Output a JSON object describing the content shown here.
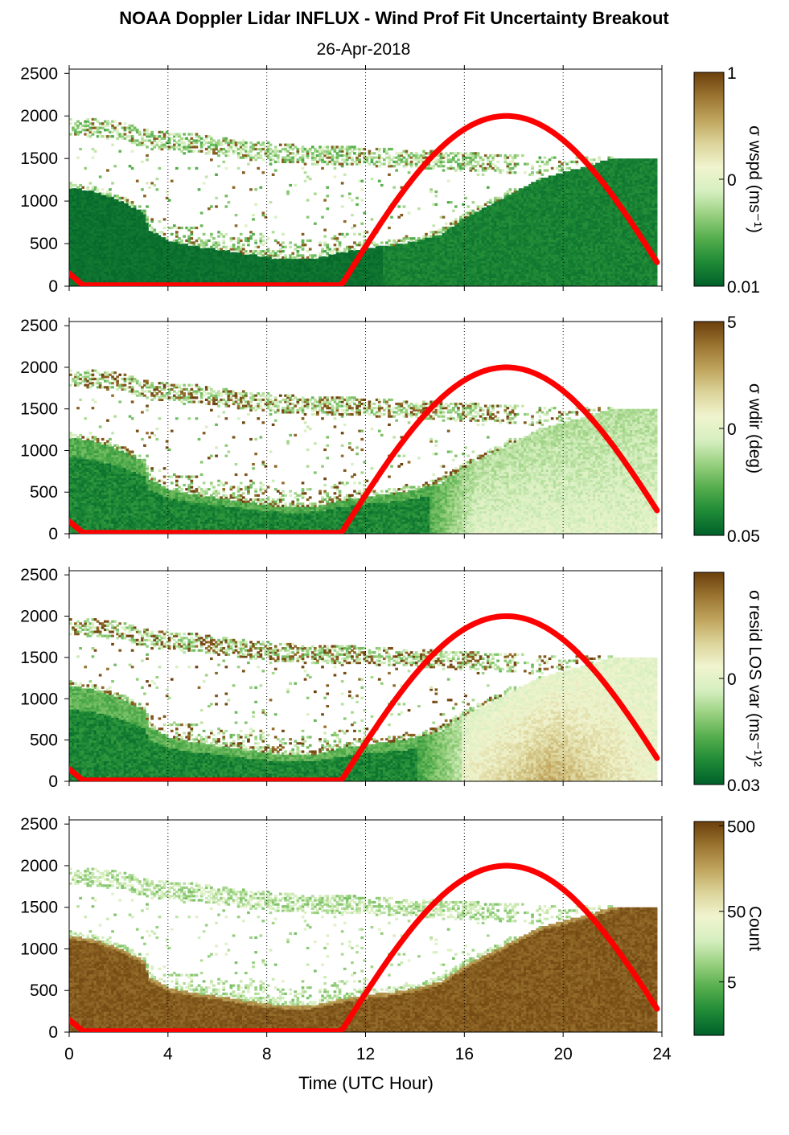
{
  "figure": {
    "title": "NOAA Doppler Lidar INFLUX - Wind Prof Fit Uncertainty Breakout",
    "subtitle": "26-Apr-2018",
    "xlabel": "Time (UTC Hour)"
  },
  "chart_data": [
    {
      "type": "heatmap",
      "xlim": [
        0,
        24
      ],
      "ylim": [
        0,
        2550
      ],
      "x_ticks": [
        "0",
        "4",
        "8",
        "12",
        "16",
        "20",
        "24"
      ],
      "y_ticks": [
        "0",
        "500",
        "1000",
        "1500",
        "2000",
        "2500"
      ],
      "vertical_gridlines": [
        4,
        8,
        12,
        16,
        20,
        24
      ],
      "colorbar": {
        "label": "σ wspd (ms⁻¹)",
        "ticks": [
          "1",
          "0",
          "0.01"
        ],
        "scale": "log"
      },
      "field": "wspd",
      "overlay": {
        "name": "solar curve",
        "color": "#ff0000",
        "peak_hour": 17.7,
        "peak_height": 2000,
        "rise_hour": 11
      }
    },
    {
      "type": "heatmap",
      "xlim": [
        0,
        24
      ],
      "ylim": [
        0,
        2550
      ],
      "x_ticks": [
        "0",
        "4",
        "8",
        "12",
        "16",
        "20",
        "24"
      ],
      "y_ticks": [
        "0",
        "500",
        "1000",
        "1500",
        "2000",
        "2500"
      ],
      "vertical_gridlines": [
        4,
        8,
        12,
        16,
        20,
        24
      ],
      "colorbar": {
        "label": "σ wdir (deg)",
        "ticks": [
          "5",
          "0",
          "0.05"
        ],
        "scale": "log"
      },
      "field": "wdir",
      "overlay": {
        "name": "solar curve",
        "color": "#ff0000",
        "peak_hour": 17.7,
        "peak_height": 2000,
        "rise_hour": 11
      }
    },
    {
      "type": "heatmap",
      "xlim": [
        0,
        24
      ],
      "ylim": [
        0,
        2550
      ],
      "x_ticks": [
        "0",
        "4",
        "8",
        "12",
        "16",
        "20",
        "24"
      ],
      "y_ticks": [
        "0",
        "500",
        "1000",
        "1500",
        "2000",
        "2500"
      ],
      "vertical_gridlines": [
        4,
        8,
        12,
        16,
        20,
        24
      ],
      "colorbar": {
        "label": "σ resid LOS var (ms⁻¹)²",
        "ticks": [
          "0",
          "0.03"
        ],
        "scale": "log"
      },
      "field": "resid",
      "overlay": {
        "name": "solar curve",
        "color": "#ff0000",
        "peak_hour": 17.7,
        "peak_height": 2000,
        "rise_hour": 11
      }
    },
    {
      "type": "heatmap",
      "xlim": [
        0,
        24
      ],
      "ylim": [
        0,
        2550
      ],
      "x_ticks": [
        "0",
        "4",
        "8",
        "12",
        "16",
        "20",
        "24"
      ],
      "y_ticks": [
        "0",
        "500",
        "1000",
        "1500",
        "2000",
        "2500"
      ],
      "vertical_gridlines": [
        4,
        8,
        12,
        16,
        20,
        24
      ],
      "colorbar": {
        "label": "Count",
        "ticks": [
          "500",
          "50",
          "5"
        ],
        "scale": "log"
      },
      "field": "count",
      "overlay": {
        "name": "solar curve",
        "color": "#ff0000",
        "peak_hour": 17.7,
        "peak_height": 2000,
        "rise_hour": 11
      }
    }
  ],
  "colors": {
    "colormap": [
      "#00602a",
      "#1e8a36",
      "#54ad4c",
      "#98d07f",
      "#d6efc0",
      "#f0f4cf",
      "#dcd49a",
      "#bfa45c",
      "#9a7430",
      "#6b3f0c"
    ],
    "overlay": "#ff0000",
    "axis": "#000000",
    "background": "#ffffff"
  }
}
